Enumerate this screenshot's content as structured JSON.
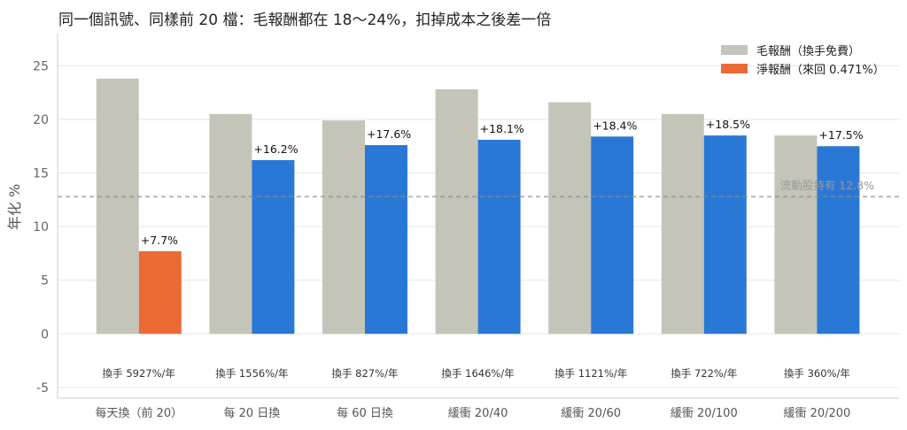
{
  "chart_data": {
    "type": "bar",
    "title": "同一個訊號、同樣前 20 檔：毛報酬都在 18～24%，扣掉成本之後差一倍",
    "ylabel": "年化 %",
    "xlabel": "",
    "ylim": [
      -6,
      28
    ],
    "yticks": [
      -5,
      0,
      5,
      10,
      15,
      20,
      25
    ],
    "grid": true,
    "legend_position": "top-right",
    "categories": [
      "每天換（前 20）",
      "每 20 日換",
      "每 60 日換",
      "緩衝 20/40",
      "緩衝 20/60",
      "緩衝 20/100",
      "緩衝 20/200"
    ],
    "turnover_labels": [
      "換手 5927%/年",
      "換手 1556%/年",
      "換手 827%/年",
      "換手 1646%/年",
      "換手 1121%/年",
      "換手 722%/年",
      "換手 360%/年"
    ],
    "series": [
      {
        "name": "毛報酬（換手免費）",
        "values": [
          23.8,
          20.5,
          19.9,
          22.8,
          21.6,
          20.5,
          18.5
        ],
        "color": "#c5c4b8"
      },
      {
        "name": "淨報酬（來回 0.471%）",
        "values": [
          7.7,
          16.2,
          17.6,
          18.1,
          18.4,
          18.5,
          17.5
        ],
        "value_labels": [
          "+7.7%",
          "+16.2%",
          "+17.6%",
          "+18.1%",
          "+18.4%",
          "+18.5%",
          "+17.5%"
        ],
        "colors": [
          "#eb6a35",
          "#2a78d6",
          "#2a78d6",
          "#2a78d6",
          "#2a78d6",
          "#2a78d6",
          "#2a78d6"
        ]
      }
    ],
    "reference_line": {
      "label": "流動股持有 12.8%",
      "value": 12.8,
      "color": "#888888"
    }
  }
}
